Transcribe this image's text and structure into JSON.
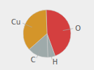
{
  "chart_data": {
    "type": "pie",
    "categories": [
      "O",
      "H",
      "C",
      "Cu"
    ],
    "values": [
      45,
      5,
      14,
      36
    ],
    "colors": [
      "#d43f3f",
      "#9eaaaa",
      "#9eaaaa",
      "#d4952a"
    ]
  }
}
